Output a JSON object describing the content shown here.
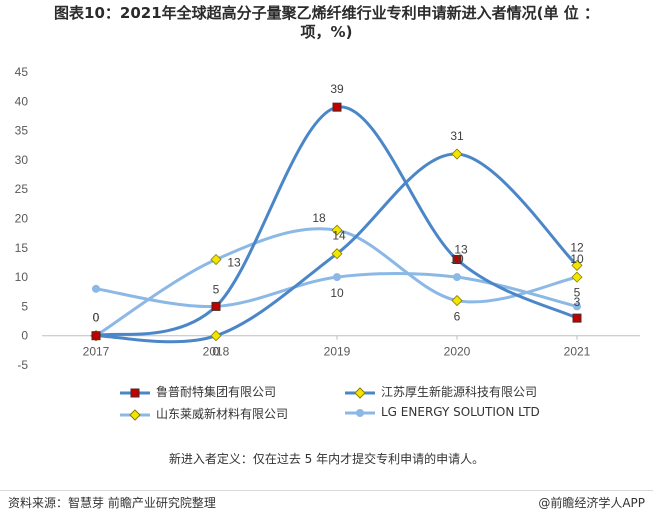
{
  "title": "图表10：2021年全球超高分子量聚乙烯纤维行业专利申请新进入者情况(单 位 ：项，%)",
  "title_line1": "图表10：2021年全球超高分子量聚乙烯纤维行业专利申请新进入者情况(单 位 ：",
  "title_line2": "项，%)",
  "note": "新进入者定义：仅在过去 5 年内才提交专利申请的申请人。",
  "source": "资料来源：智慧芽 前瞻产业研究院整理",
  "brand": "@前瞻经济学人APP",
  "chart_data": {
    "type": "line",
    "smooth": true,
    "categories": [
      "2017",
      "2018",
      "2019",
      "2020",
      "2021"
    ],
    "ylim": [
      -5,
      45
    ],
    "yticks": [
      -5,
      0,
      5,
      10,
      15,
      20,
      25,
      30,
      35,
      40,
      45
    ],
    "grid": false,
    "legend_position": "bottom",
    "series": [
      {
        "name": "鲁普耐特集团有限公司",
        "values": [
          0,
          5,
          39,
          13,
          3
        ],
        "color": "#4a86c8",
        "marker": "square",
        "marker_color": "#c00000",
        "labels": [
          "0",
          "5",
          "39",
          "13",
          "3"
        ]
      },
      {
        "name": "江苏厚生新能源科技有限公司",
        "values": [
          0,
          0,
          14,
          31,
          12
        ],
        "color": "#4a86c8",
        "marker": "diamond",
        "marker_color": "#f2e600",
        "labels": [
          "0",
          "0",
          "14",
          "31",
          "12"
        ]
      },
      {
        "name": "山东莱威新材料有限公司",
        "values": [
          0,
          13,
          18,
          6,
          10
        ],
        "color": "#8cb8e6",
        "marker": "diamond",
        "marker_color": "#f2e600",
        "labels": [
          "",
          "13",
          "18",
          "6",
          "10"
        ]
      },
      {
        "name": "LG ENERGY SOLUTION LTD",
        "values": [
          8,
          5,
          10,
          10,
          5
        ],
        "color": "#8cb8e6",
        "marker": "circle",
        "marker_color": "#8cb8e6",
        "labels": [
          "",
          "",
          "10",
          "10",
          "5"
        ]
      }
    ]
  }
}
